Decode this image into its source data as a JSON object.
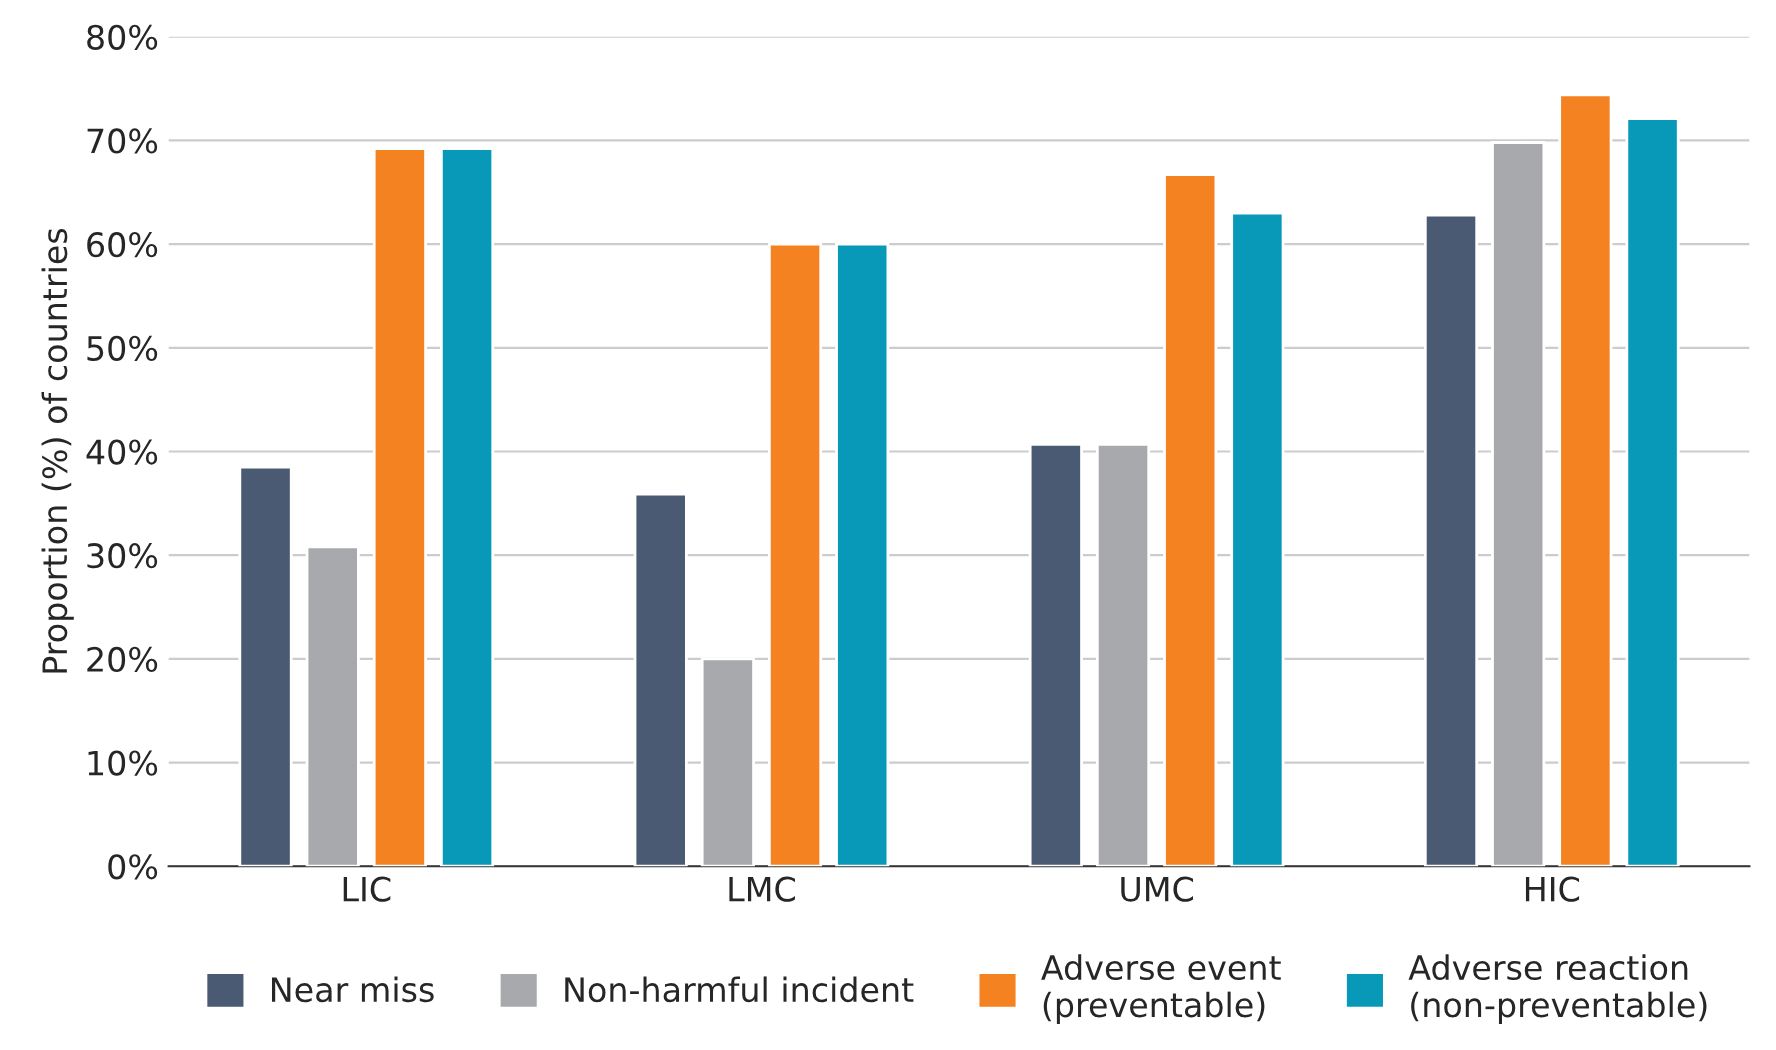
{
  "chart_data": {
    "type": "bar",
    "ylabel": "Proportion (%) of countries",
    "categories": [
      "LIC",
      "LMC",
      "UMC",
      "HIC"
    ],
    "series": [
      {
        "name": "Near miss",
        "color": "#4a5a72",
        "values": [
          38.5,
          35.9,
          40.7,
          62.8
        ]
      },
      {
        "name": "Non-harmful incident",
        "color": "#a7a9ac",
        "values": [
          30.8,
          20.0,
          40.7,
          69.8
        ]
      },
      {
        "name": "Adverse event\n(preventable)",
        "color": "#f58220",
        "values": [
          69.2,
          60.0,
          66.7,
          74.4
        ]
      },
      {
        "name": "Adverse reaction\n(non-preventable)",
        "color": "#0899b9",
        "values": [
          69.2,
          60.0,
          63.0,
          72.1
        ]
      }
    ],
    "ylim": [
      0,
      80
    ],
    "yticks": [
      {
        "value": 0,
        "label": "0%"
      },
      {
        "value": 10,
        "label": "10%"
      },
      {
        "value": 20,
        "label": "20%"
      },
      {
        "value": 30,
        "label": "30%"
      },
      {
        "value": 40,
        "label": "40%"
      },
      {
        "value": 50,
        "label": "50%"
      },
      {
        "value": 60,
        "label": "60%"
      },
      {
        "value": 70,
        "label": "70%"
      },
      {
        "value": 80,
        "label": "80%"
      }
    ],
    "grid": "y",
    "legend": "bottom"
  }
}
